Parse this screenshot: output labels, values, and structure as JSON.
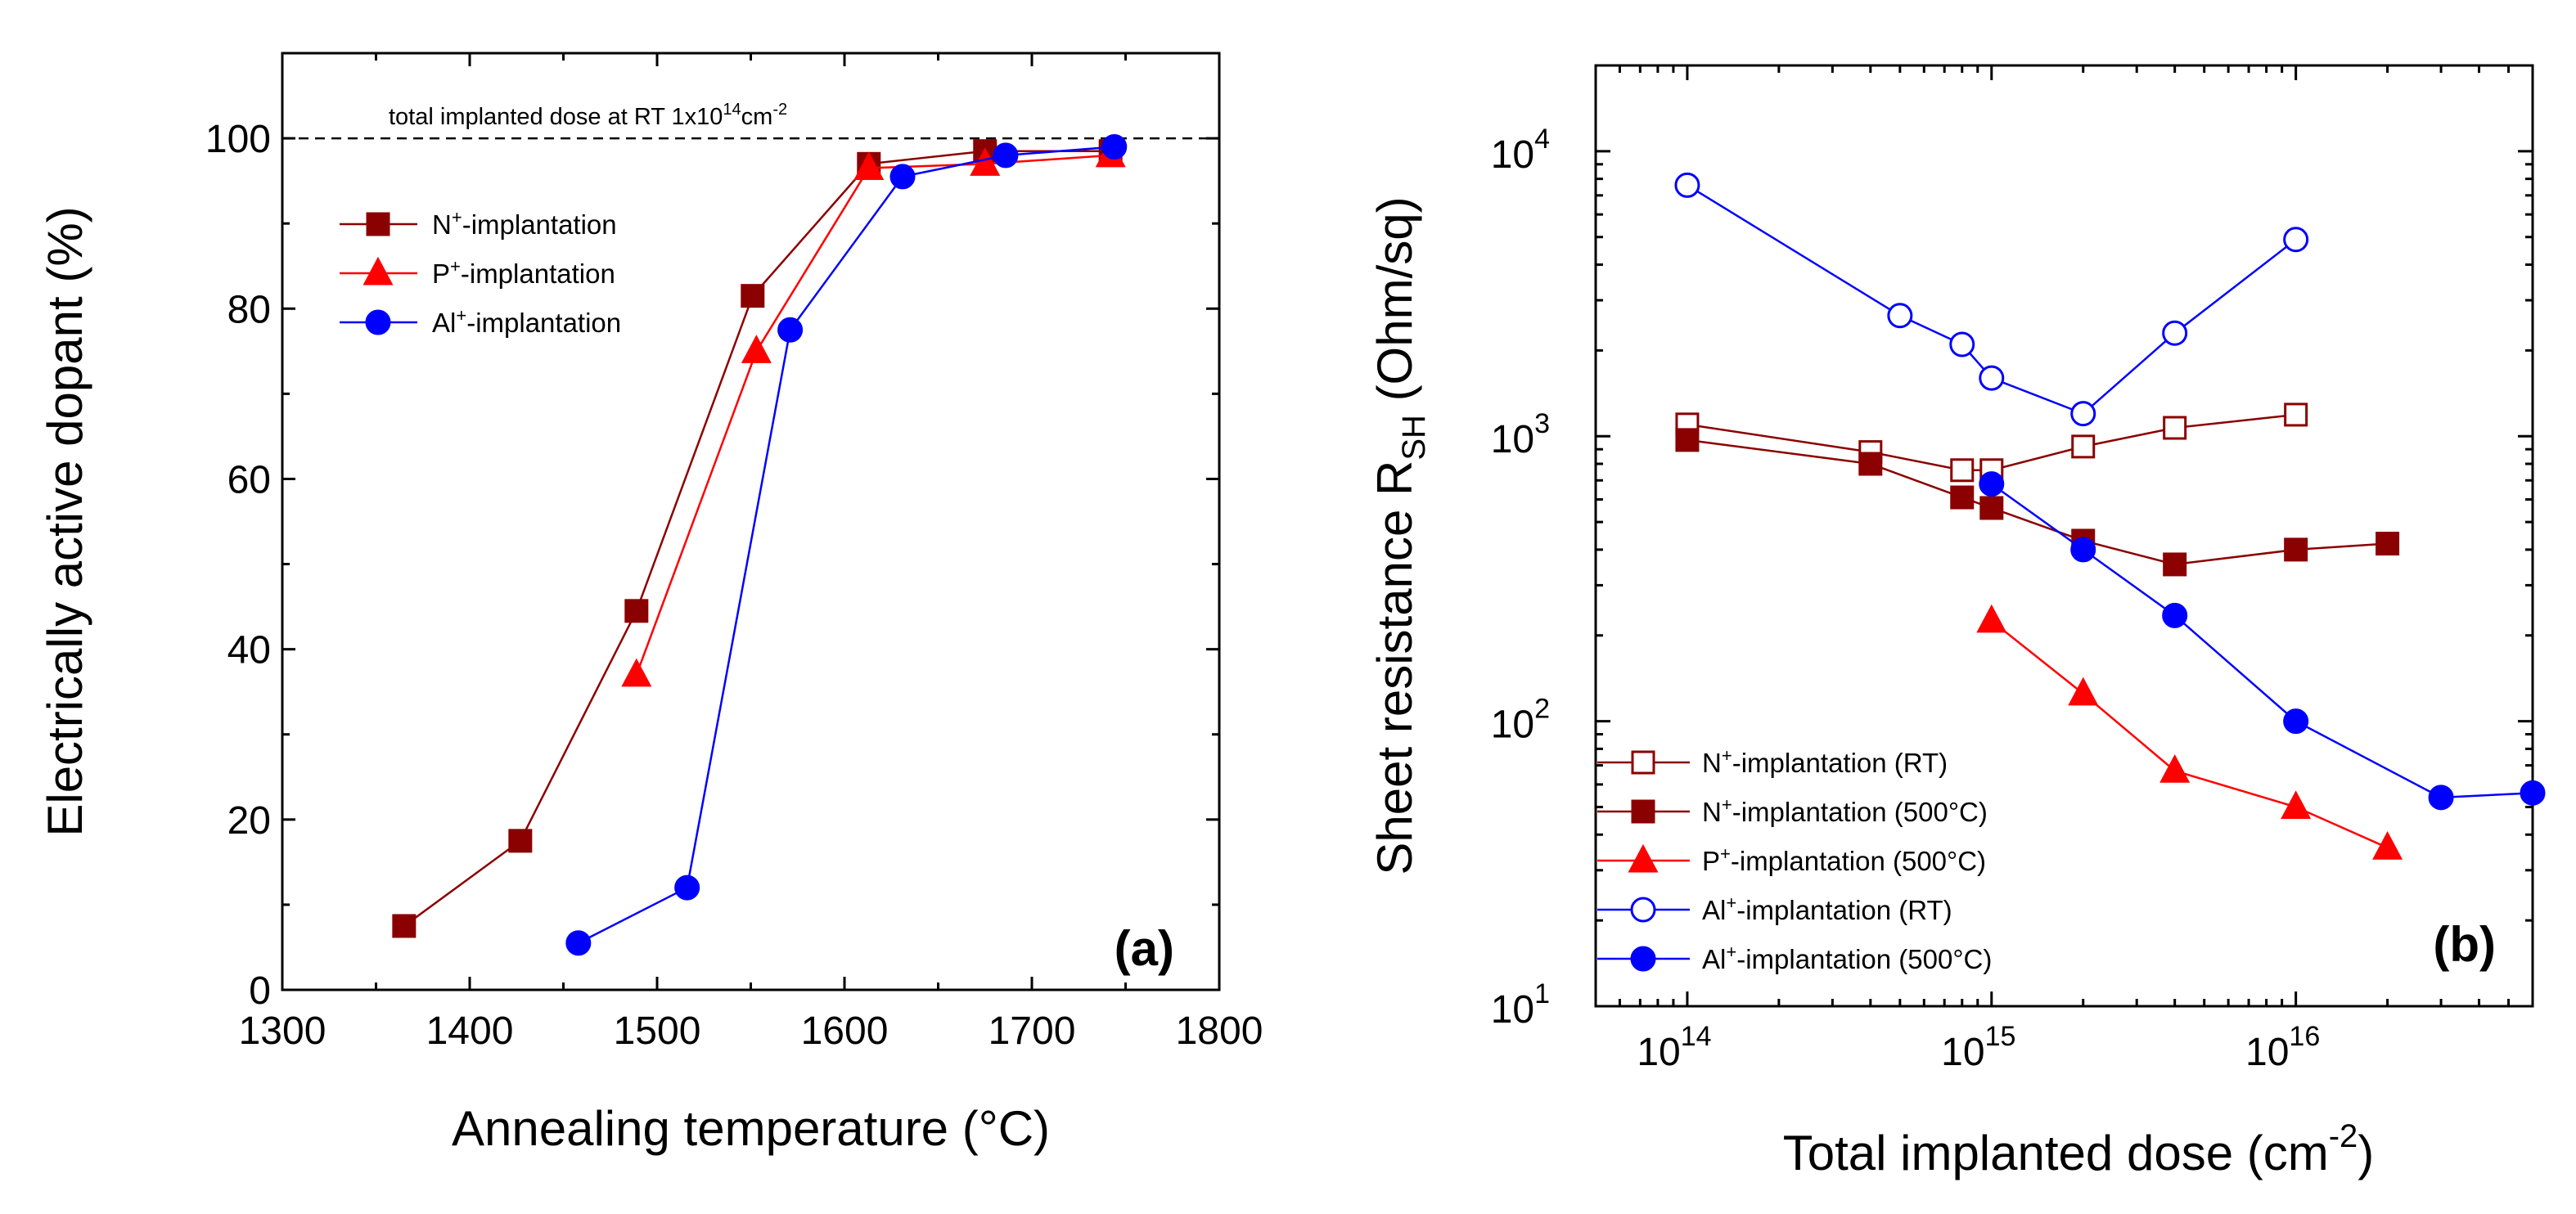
{
  "chart_data": [
    {
      "type": "line",
      "panel_label": "(a)",
      "xlabel": "Annealing temperature (°C)",
      "ylabel": "Electrically active dopant (%)",
      "xlim": [
        1300,
        1800
      ],
      "ylim": [
        0,
        110
      ],
      "xticks": [
        1300,
        1400,
        1500,
        1600,
        1700,
        1800
      ],
      "yticks": [
        0,
        20,
        40,
        60,
        80,
        100
      ],
      "reference_line": {
        "y": 100,
        "style": "dashed"
      },
      "annotation": {
        "prefix": "total implanted dose at RT 1x10",
        "exp": "14",
        "unit": "cm",
        "unit_exp": "-2"
      },
      "legend_position": "upper-left",
      "series": [
        {
          "name": "N+-implantation",
          "label_base": "N",
          "label_sup": "+",
          "label_rest": "-implantation",
          "color": "#8B0000",
          "marker": "square",
          "filled": true,
          "x": [
            1365,
            1427,
            1489,
            1551,
            1613,
            1675,
            1742
          ],
          "y": [
            7.5,
            17.5,
            44.5,
            81.5,
            97,
            98.5,
            98.5
          ]
        },
        {
          "name": "P+-implantation",
          "label_base": "P",
          "label_sup": "+",
          "label_rest": "-implantation",
          "color": "#FF0000",
          "marker": "triangle",
          "filled": true,
          "x": [
            1489,
            1553,
            1613,
            1675,
            1742
          ],
          "y": [
            37,
            75,
            96.5,
            97,
            98
          ]
        },
        {
          "name": "Al+-implantation",
          "label_base": "Al",
          "label_sup": "+",
          "label_rest": "-implantation",
          "color": "#0000FF",
          "marker": "circle",
          "filled": true,
          "x": [
            1458,
            1516,
            1571,
            1631,
            1686,
            1744
          ],
          "y": [
            5.5,
            12,
            77.5,
            95.5,
            98,
            99
          ]
        }
      ]
    },
    {
      "type": "line",
      "scale": "log-log",
      "panel_label": "(b)",
      "xlabel": "Total implanted dose (cm",
      "xlabel_exp": "-2",
      "xlabel_end": ")",
      "ylabel": "Sheet resistance R",
      "ylabel_sub": "SH",
      "ylabel_end": " (Ohm/sq)",
      "xlim": [
        50000000000000.0,
        6e+16
      ],
      "ylim": [
        10,
        20000
      ],
      "xticks": [
        {
          "base": "10",
          "exp": "14",
          "value": 100000000000000.0
        },
        {
          "base": "10",
          "exp": "15",
          "value": 1000000000000000.0
        },
        {
          "base": "10",
          "exp": "16",
          "value": 1e+16
        }
      ],
      "yticks": [
        {
          "base": "10",
          "exp": "1",
          "value": 10
        },
        {
          "base": "10",
          "exp": "2",
          "value": 100
        },
        {
          "base": "10",
          "exp": "3",
          "value": 1000
        },
        {
          "base": "10",
          "exp": "4",
          "value": 10000
        }
      ],
      "legend_position": "lower-left",
      "series": [
        {
          "name": "N+-implantation (RT)",
          "label_base": "N",
          "label_sup": "+",
          "label_rest": "-implantation (RT)",
          "color": "#8B0000",
          "marker": "square",
          "filled": false,
          "x": [
            100000000000000.0,
            400000000000000.0,
            800000000000000.0,
            1000000000000000.0,
            2000000000000000.0,
            4000000000000000.0,
            1e+16
          ],
          "y": [
            1100,
            880,
            760,
            760,
            920,
            1070,
            1190
          ]
        },
        {
          "name": "N+-implantation (500°C)",
          "label_base": "N",
          "label_sup": "+",
          "label_rest": "-implantation (500°C)",
          "color": "#8B0000",
          "marker": "square",
          "filled": true,
          "x": [
            100000000000000.0,
            400000000000000.0,
            800000000000000.0,
            1000000000000000.0,
            2000000000000000.0,
            4000000000000000.0,
            1e+16,
            2e+16
          ],
          "y": [
            970,
            800,
            610,
            560,
            430,
            355,
            400,
            420
          ]
        },
        {
          "name": "P+-implantation (500°C)",
          "label_base": "P",
          "label_sup": "+",
          "label_rest": "-implantation (500°C)",
          "color": "#FF0000",
          "marker": "triangle",
          "filled": true,
          "x": [
            1000000000000000.0,
            2000000000000000.0,
            4000000000000000.0,
            1e+16,
            2e+16
          ],
          "y": [
            225,
            125,
            67,
            50,
            36
          ]
        },
        {
          "name": "Al+-implantation (RT)",
          "label_base": "Al",
          "label_sup": "+",
          "label_rest": "-implantation (RT)",
          "color": "#0000FF",
          "marker": "circle",
          "filled": false,
          "x": [
            100000000000000.0,
            500000000000000.0,
            800000000000000.0,
            1000000000000000.0,
            2000000000000000.0,
            4000000000000000.0,
            1e+16
          ],
          "y": [
            7600,
            2650,
            2100,
            1600,
            1200,
            2300,
            4900
          ]
        },
        {
          "name": "Al+-implantation (500°C)",
          "label_base": "Al",
          "label_sup": "+",
          "label_rest": "-implantation (500°C)",
          "color": "#0000FF",
          "marker": "circle",
          "filled": true,
          "x": [
            1000000000000000.0,
            2000000000000000.0,
            4000000000000000.0,
            1e+16,
            3e+16,
            6e+16
          ],
          "y": [
            680,
            400,
            235,
            100,
            54,
            56
          ]
        }
      ]
    }
  ]
}
